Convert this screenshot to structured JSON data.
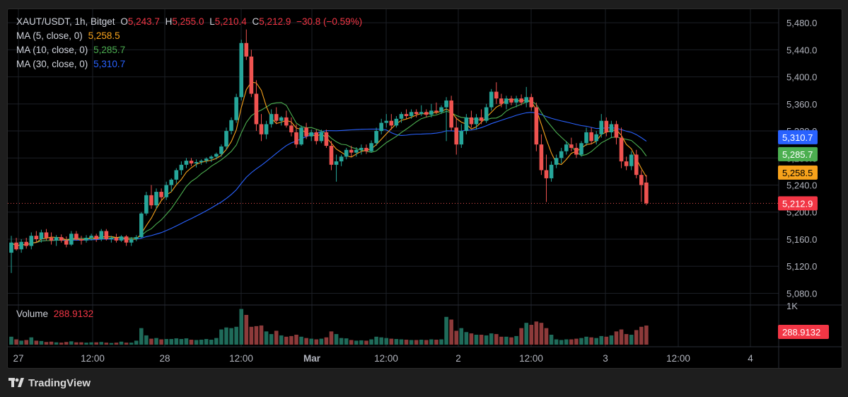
{
  "colors": {
    "up": "#26a69a",
    "down": "#ef5350",
    "ma5": "#f7a21b",
    "ma10": "#4caf50",
    "ma30": "#2962ff",
    "price_tag": "#f23645",
    "text": "#d1d4dc",
    "grid": "#1c1f26"
  },
  "legend": {
    "symbol": "XAUT/USDT, 1h, Bitget",
    "o_label": "O",
    "o_value": "5,243.7",
    "h_label": "H",
    "h_value": "5,255.0",
    "l_label": "L",
    "l_value": "5,210.4",
    "c_label": "C",
    "c_value": "5,212.9",
    "change": "−30.8 (−0.59%)",
    "ma5_label": "MA (5, close, 0)",
    "ma5_value": "5,258.5",
    "ma10_label": "MA (10, close, 0)",
    "ma10_value": "5,285.7",
    "ma30_label": "MA (30, close, 0)",
    "ma30_value": "5,310.7",
    "volume_label": "Volume",
    "volume_value": "288.9132"
  },
  "footer": {
    "brand": "TradingView",
    "logo_icon": "tradingview-logo-icon"
  },
  "chart_data": {
    "type": "candlestick",
    "title": "XAUT/USDT, 1h, Bitget",
    "ylim": [
      5070,
      5500
    ],
    "y_ticks": [
      "5,480.0",
      "5,440.0",
      "5,400.0",
      "5,360.0",
      "5,320.0",
      "5,280.0",
      "5,240.0",
      "5,200.0",
      "5,160.0",
      "5,120.0",
      "5,080.0"
    ],
    "x_ticks": [
      "27",
      "12:00",
      "28",
      "12:00",
      "Mar",
      "12:00",
      "2",
      "12:00",
      "3",
      "12:00",
      "4"
    ],
    "volume_axis_label": "1K",
    "price_tags": [
      {
        "label": "5,310.7",
        "value": 5310.7,
        "series": "ma30"
      },
      {
        "label": "5,285.7",
        "value": 5285.7,
        "series": "ma10"
      },
      {
        "label": "5,258.5",
        "value": 5258.5,
        "series": "ma5"
      },
      {
        "label": "5,212.9",
        "value": 5212.9,
        "series": "last"
      },
      {
        "label": "288.9132",
        "value": 288.9132,
        "series": "volume"
      }
    ],
    "last_price": 5212.9,
    "candles": [
      {
        "o": 5140,
        "h": 5165,
        "l": 5110,
        "c": 5155,
        "v": 120
      },
      {
        "o": 5155,
        "h": 5162,
        "l": 5143,
        "c": 5145,
        "v": 80
      },
      {
        "o": 5145,
        "h": 5160,
        "l": 5140,
        "c": 5156,
        "v": 60
      },
      {
        "o": 5156,
        "h": 5162,
        "l": 5146,
        "c": 5150,
        "v": 70
      },
      {
        "o": 5150,
        "h": 5170,
        "l": 5145,
        "c": 5165,
        "v": 110
      },
      {
        "o": 5165,
        "h": 5172,
        "l": 5155,
        "c": 5160,
        "v": 60
      },
      {
        "o": 5160,
        "h": 5174,
        "l": 5155,
        "c": 5170,
        "v": 55
      },
      {
        "o": 5170,
        "h": 5175,
        "l": 5158,
        "c": 5162,
        "v": 40
      },
      {
        "o": 5162,
        "h": 5170,
        "l": 5152,
        "c": 5158,
        "v": 45
      },
      {
        "o": 5158,
        "h": 5166,
        "l": 5150,
        "c": 5163,
        "v": 35
      },
      {
        "o": 5163,
        "h": 5167,
        "l": 5155,
        "c": 5158,
        "v": 30
      },
      {
        "o": 5158,
        "h": 5164,
        "l": 5148,
        "c": 5152,
        "v": 40
      },
      {
        "o": 5152,
        "h": 5172,
        "l": 5150,
        "c": 5168,
        "v": 50
      },
      {
        "o": 5168,
        "h": 5172,
        "l": 5158,
        "c": 5160,
        "v": 35
      },
      {
        "o": 5160,
        "h": 5165,
        "l": 5152,
        "c": 5158,
        "v": 35
      },
      {
        "o": 5158,
        "h": 5166,
        "l": 5155,
        "c": 5162,
        "v": 30
      },
      {
        "o": 5162,
        "h": 5168,
        "l": 5158,
        "c": 5165,
        "v": 35
      },
      {
        "o": 5165,
        "h": 5168,
        "l": 5156,
        "c": 5160,
        "v": 35
      },
      {
        "o": 5160,
        "h": 5175,
        "l": 5157,
        "c": 5172,
        "v": 40
      },
      {
        "o": 5172,
        "h": 5175,
        "l": 5158,
        "c": 5160,
        "v": 30
      },
      {
        "o": 5160,
        "h": 5165,
        "l": 5155,
        "c": 5162,
        "v": 25
      },
      {
        "o": 5162,
        "h": 5168,
        "l": 5155,
        "c": 5158,
        "v": 30
      },
      {
        "o": 5158,
        "h": 5166,
        "l": 5156,
        "c": 5164,
        "v": 45
      },
      {
        "o": 5164,
        "h": 5166,
        "l": 5150,
        "c": 5155,
        "v": 30
      },
      {
        "o": 5155,
        "h": 5163,
        "l": 5150,
        "c": 5160,
        "v": 30
      },
      {
        "o": 5160,
        "h": 5166,
        "l": 5157,
        "c": 5163,
        "v": 60
      },
      {
        "o": 5163,
        "h": 5200,
        "l": 5162,
        "c": 5198,
        "v": 250
      },
      {
        "o": 5198,
        "h": 5230,
        "l": 5195,
        "c": 5225,
        "v": 140
      },
      {
        "o": 5225,
        "h": 5240,
        "l": 5205,
        "c": 5210,
        "v": 90
      },
      {
        "o": 5210,
        "h": 5235,
        "l": 5205,
        "c": 5230,
        "v": 100
      },
      {
        "o": 5230,
        "h": 5235,
        "l": 5218,
        "c": 5222,
        "v": 80
      },
      {
        "o": 5222,
        "h": 5245,
        "l": 5218,
        "c": 5240,
        "v": 85
      },
      {
        "o": 5240,
        "h": 5250,
        "l": 5230,
        "c": 5248,
        "v": 85
      },
      {
        "o": 5248,
        "h": 5265,
        "l": 5242,
        "c": 5262,
        "v": 95
      },
      {
        "o": 5262,
        "h": 5275,
        "l": 5255,
        "c": 5270,
        "v": 85
      },
      {
        "o": 5270,
        "h": 5280,
        "l": 5265,
        "c": 5276,
        "v": 95
      },
      {
        "o": 5276,
        "h": 5280,
        "l": 5268,
        "c": 5272,
        "v": 75
      },
      {
        "o": 5272,
        "h": 5278,
        "l": 5266,
        "c": 5274,
        "v": 70
      },
      {
        "o": 5274,
        "h": 5278,
        "l": 5270,
        "c": 5276,
        "v": 75
      },
      {
        "o": 5276,
        "h": 5281,
        "l": 5272,
        "c": 5279,
        "v": 85
      },
      {
        "o": 5279,
        "h": 5284,
        "l": 5274,
        "c": 5282,
        "v": 75
      },
      {
        "o": 5282,
        "h": 5288,
        "l": 5278,
        "c": 5286,
        "v": 100
      },
      {
        "o": 5286,
        "h": 5300,
        "l": 5282,
        "c": 5297,
        "v": 230
      },
      {
        "o": 5297,
        "h": 5325,
        "l": 5292,
        "c": 5320,
        "v": 260
      },
      {
        "o": 5320,
        "h": 5340,
        "l": 5315,
        "c": 5336,
        "v": 250
      },
      {
        "o": 5336,
        "h": 5375,
        "l": 5332,
        "c": 5370,
        "v": 270
      },
      {
        "o": 5370,
        "h": 5455,
        "l": 5365,
        "c": 5450,
        "v": 540
      },
      {
        "o": 5450,
        "h": 5470,
        "l": 5425,
        "c": 5430,
        "v": 450
      },
      {
        "o": 5430,
        "h": 5440,
        "l": 5370,
        "c": 5375,
        "v": 270
      },
      {
        "o": 5375,
        "h": 5395,
        "l": 5320,
        "c": 5330,
        "v": 280
      },
      {
        "o": 5330,
        "h": 5345,
        "l": 5305,
        "c": 5315,
        "v": 290
      },
      {
        "o": 5315,
        "h": 5335,
        "l": 5308,
        "c": 5330,
        "v": 200
      },
      {
        "o": 5330,
        "h": 5352,
        "l": 5325,
        "c": 5345,
        "v": 160
      },
      {
        "o": 5345,
        "h": 5355,
        "l": 5330,
        "c": 5335,
        "v": 210
      },
      {
        "o": 5335,
        "h": 5342,
        "l": 5328,
        "c": 5340,
        "v": 140
      },
      {
        "o": 5340,
        "h": 5350,
        "l": 5325,
        "c": 5328,
        "v": 120
      },
      {
        "o": 5328,
        "h": 5340,
        "l": 5312,
        "c": 5318,
        "v": 130
      },
      {
        "o": 5318,
        "h": 5330,
        "l": 5295,
        "c": 5300,
        "v": 150
      },
      {
        "o": 5300,
        "h": 5328,
        "l": 5298,
        "c": 5325,
        "v": 120
      },
      {
        "o": 5325,
        "h": 5332,
        "l": 5308,
        "c": 5312,
        "v": 100
      },
      {
        "o": 5312,
        "h": 5322,
        "l": 5305,
        "c": 5318,
        "v": 90
      },
      {
        "o": 5318,
        "h": 5322,
        "l": 5300,
        "c": 5305,
        "v": 80
      },
      {
        "o": 5305,
        "h": 5322,
        "l": 5302,
        "c": 5318,
        "v": 90
      },
      {
        "o": 5318,
        "h": 5322,
        "l": 5295,
        "c": 5298,
        "v": 110
      },
      {
        "o": 5298,
        "h": 5305,
        "l": 5262,
        "c": 5270,
        "v": 200
      },
      {
        "o": 5270,
        "h": 5285,
        "l": 5245,
        "c": 5275,
        "v": 160
      },
      {
        "o": 5275,
        "h": 5285,
        "l": 5268,
        "c": 5282,
        "v": 100
      },
      {
        "o": 5282,
        "h": 5295,
        "l": 5278,
        "c": 5292,
        "v": 95
      },
      {
        "o": 5292,
        "h": 5298,
        "l": 5282,
        "c": 5288,
        "v": 70
      },
      {
        "o": 5288,
        "h": 5296,
        "l": 5282,
        "c": 5292,
        "v": 60
      },
      {
        "o": 5292,
        "h": 5300,
        "l": 5285,
        "c": 5295,
        "v": 65
      },
      {
        "o": 5295,
        "h": 5300,
        "l": 5286,
        "c": 5290,
        "v": 60
      },
      {
        "o": 5290,
        "h": 5306,
        "l": 5288,
        "c": 5302,
        "v": 80
      },
      {
        "o": 5302,
        "h": 5325,
        "l": 5298,
        "c": 5320,
        "v": 120
      },
      {
        "o": 5320,
        "h": 5338,
        "l": 5315,
        "c": 5332,
        "v": 110
      },
      {
        "o": 5332,
        "h": 5345,
        "l": 5325,
        "c": 5335,
        "v": 100
      },
      {
        "o": 5335,
        "h": 5345,
        "l": 5322,
        "c": 5328,
        "v": 90
      },
      {
        "o": 5328,
        "h": 5342,
        "l": 5325,
        "c": 5338,
        "v": 85
      },
      {
        "o": 5338,
        "h": 5348,
        "l": 5332,
        "c": 5345,
        "v": 80
      },
      {
        "o": 5345,
        "h": 5352,
        "l": 5338,
        "c": 5342,
        "v": 75
      },
      {
        "o": 5342,
        "h": 5352,
        "l": 5338,
        "c": 5348,
        "v": 70
      },
      {
        "o": 5348,
        "h": 5352,
        "l": 5340,
        "c": 5345,
        "v": 70
      },
      {
        "o": 5345,
        "h": 5358,
        "l": 5342,
        "c": 5348,
        "v": 75
      },
      {
        "o": 5348,
        "h": 5352,
        "l": 5340,
        "c": 5344,
        "v": 70
      },
      {
        "o": 5344,
        "h": 5360,
        "l": 5340,
        "c": 5350,
        "v": 80
      },
      {
        "o": 5350,
        "h": 5362,
        "l": 5345,
        "c": 5348,
        "v": 75
      },
      {
        "o": 5348,
        "h": 5358,
        "l": 5345,
        "c": 5355,
        "v": 80
      },
      {
        "o": 5355,
        "h": 5370,
        "l": 5305,
        "c": 5365,
        "v": 420
      },
      {
        "o": 5365,
        "h": 5372,
        "l": 5320,
        "c": 5325,
        "v": 380
      },
      {
        "o": 5325,
        "h": 5340,
        "l": 5285,
        "c": 5300,
        "v": 210
      },
      {
        "o": 5300,
        "h": 5330,
        "l": 5295,
        "c": 5320,
        "v": 250
      },
      {
        "o": 5320,
        "h": 5345,
        "l": 5315,
        "c": 5340,
        "v": 190
      },
      {
        "o": 5340,
        "h": 5350,
        "l": 5325,
        "c": 5330,
        "v": 170
      },
      {
        "o": 5330,
        "h": 5345,
        "l": 5322,
        "c": 5340,
        "v": 150
      },
      {
        "o": 5340,
        "h": 5352,
        "l": 5330,
        "c": 5335,
        "v": 150
      },
      {
        "o": 5335,
        "h": 5360,
        "l": 5332,
        "c": 5355,
        "v": 140
      },
      {
        "o": 5355,
        "h": 5382,
        "l": 5350,
        "c": 5378,
        "v": 170
      },
      {
        "o": 5378,
        "h": 5392,
        "l": 5360,
        "c": 5368,
        "v": 160
      },
      {
        "o": 5368,
        "h": 5375,
        "l": 5355,
        "c": 5360,
        "v": 120
      },
      {
        "o": 5360,
        "h": 5372,
        "l": 5352,
        "c": 5368,
        "v": 120
      },
      {
        "o": 5368,
        "h": 5372,
        "l": 5358,
        "c": 5362,
        "v": 110
      },
      {
        "o": 5362,
        "h": 5372,
        "l": 5355,
        "c": 5368,
        "v": 130
      },
      {
        "o": 5368,
        "h": 5374,
        "l": 5358,
        "c": 5362,
        "v": 250
      },
      {
        "o": 5362,
        "h": 5385,
        "l": 5355,
        "c": 5370,
        "v": 330
      },
      {
        "o": 5370,
        "h": 5375,
        "l": 5350,
        "c": 5355,
        "v": 300
      },
      {
        "o": 5355,
        "h": 5362,
        "l": 5290,
        "c": 5300,
        "v": 350
      },
      {
        "o": 5300,
        "h": 5315,
        "l": 5255,
        "c": 5262,
        "v": 330
      },
      {
        "o": 5262,
        "h": 5285,
        "l": 5215,
        "c": 5250,
        "v": 250
      },
      {
        "o": 5250,
        "h": 5275,
        "l": 5245,
        "c": 5270,
        "v": 150
      },
      {
        "o": 5270,
        "h": 5285,
        "l": 5265,
        "c": 5280,
        "v": 80
      },
      {
        "o": 5280,
        "h": 5295,
        "l": 5272,
        "c": 5290,
        "v": 70
      },
      {
        "o": 5290,
        "h": 5305,
        "l": 5285,
        "c": 5300,
        "v": 80
      },
      {
        "o": 5300,
        "h": 5310,
        "l": 5290,
        "c": 5295,
        "v": 80
      },
      {
        "o": 5295,
        "h": 5302,
        "l": 5280,
        "c": 5285,
        "v": 90
      },
      {
        "o": 5285,
        "h": 5305,
        "l": 5282,
        "c": 5302,
        "v": 100
      },
      {
        "o": 5302,
        "h": 5325,
        "l": 5298,
        "c": 5318,
        "v": 120
      },
      {
        "o": 5318,
        "h": 5325,
        "l": 5300,
        "c": 5305,
        "v": 110
      },
      {
        "o": 5305,
        "h": 5320,
        "l": 5300,
        "c": 5315,
        "v": 100
      },
      {
        "o": 5315,
        "h": 5345,
        "l": 5310,
        "c": 5335,
        "v": 130
      },
      {
        "o": 5335,
        "h": 5340,
        "l": 5312,
        "c": 5318,
        "v": 120
      },
      {
        "o": 5318,
        "h": 5335,
        "l": 5310,
        "c": 5330,
        "v": 140
      },
      {
        "o": 5330,
        "h": 5335,
        "l": 5300,
        "c": 5310,
        "v": 200
      },
      {
        "o": 5310,
        "h": 5325,
        "l": 5265,
        "c": 5275,
        "v": 230
      },
      {
        "o": 5275,
        "h": 5282,
        "l": 5262,
        "c": 5268,
        "v": 160
      },
      {
        "o": 5268,
        "h": 5290,
        "l": 5262,
        "c": 5285,
        "v": 150
      },
      {
        "o": 5285,
        "h": 5292,
        "l": 5250,
        "c": 5255,
        "v": 220
      },
      {
        "o": 5255,
        "h": 5262,
        "l": 5215,
        "c": 5240,
        "v": 270
      },
      {
        "o": 5243.7,
        "h": 5255,
        "l": 5210.4,
        "c": 5212.9,
        "v": 289
      }
    ]
  }
}
